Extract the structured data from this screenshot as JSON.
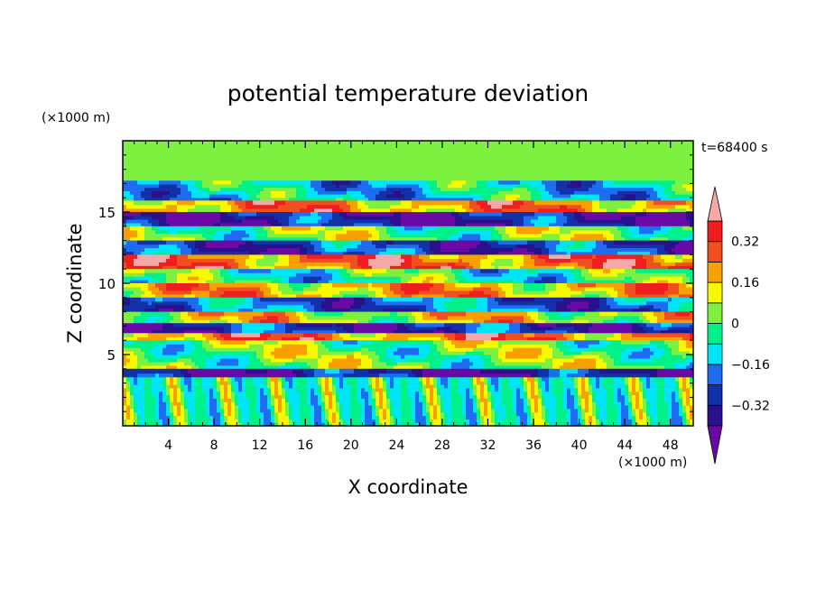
{
  "chart_data": {
    "type": "heatmap",
    "title": "potential temperature deviation",
    "xlabel": "X coordinate",
    "ylabel": "Z coordinate",
    "x_unit": "(×1000 m)",
    "y_unit": "(×1000 m)",
    "time_label": "t=68400 s",
    "xlim": [
      0,
      50
    ],
    "ylim": [
      0,
      20
    ],
    "x_ticks": [
      4,
      8,
      12,
      16,
      20,
      24,
      28,
      32,
      36,
      40,
      44,
      48
    ],
    "y_ticks": [
      5,
      10,
      15
    ],
    "colorbar": {
      "levels": [
        -0.4,
        -0.32,
        -0.24,
        -0.16,
        -0.08,
        0,
        0.08,
        0.16,
        0.24,
        0.32,
        0.4
      ],
      "tick_labels": [
        "0.32",
        "0.16",
        "0",
        "−0.16",
        "−0.32"
      ],
      "tick_values": [
        0.32,
        0.16,
        0,
        -0.16,
        -0.32
      ],
      "colors": [
        "#6a0aa6",
        "#2a108a",
        "#1230a8",
        "#1e6cf0",
        "#00e4f8",
        "#00f08a",
        "#7ef040",
        "#f8f800",
        "#f8a000",
        "#f05020",
        "#f01e1e",
        "#f4a8a8"
      ]
    },
    "bands": [
      {
        "z": [
          17.2,
          20
        ],
        "field": 0.04
      },
      {
        "z": [
          15.8,
          17.2
        ],
        "field": -0.12
      },
      {
        "z": [
          15.0,
          15.8
        ],
        "field": 0.22
      },
      {
        "z": [
          14.0,
          15.0
        ],
        "field": -0.34
      },
      {
        "z": [
          13.0,
          14.0
        ],
        "field": 0.02
      },
      {
        "z": [
          12.0,
          13.0
        ],
        "field": -0.28
      },
      {
        "z": [
          11.0,
          12.0
        ],
        "field": 0.26
      },
      {
        "z": [
          10.0,
          11.0
        ],
        "field": -0.05
      },
      {
        "z": [
          9.0,
          10.0
        ],
        "field": 0.18
      },
      {
        "z": [
          8.0,
          9.0
        ],
        "field": -0.22
      },
      {
        "z": [
          7.2,
          8.0
        ],
        "field": 0.12
      },
      {
        "z": [
          6.5,
          7.2
        ],
        "field": -0.3
      },
      {
        "z": [
          6.0,
          6.5
        ],
        "field": 0.25
      },
      {
        "z": [
          4.0,
          6.0
        ],
        "field": 0.02
      },
      {
        "z": [
          3.4,
          4.0
        ],
        "field": -0.35
      },
      {
        "z": [
          0,
          3.4
        ],
        "field": -0.04
      }
    ]
  }
}
